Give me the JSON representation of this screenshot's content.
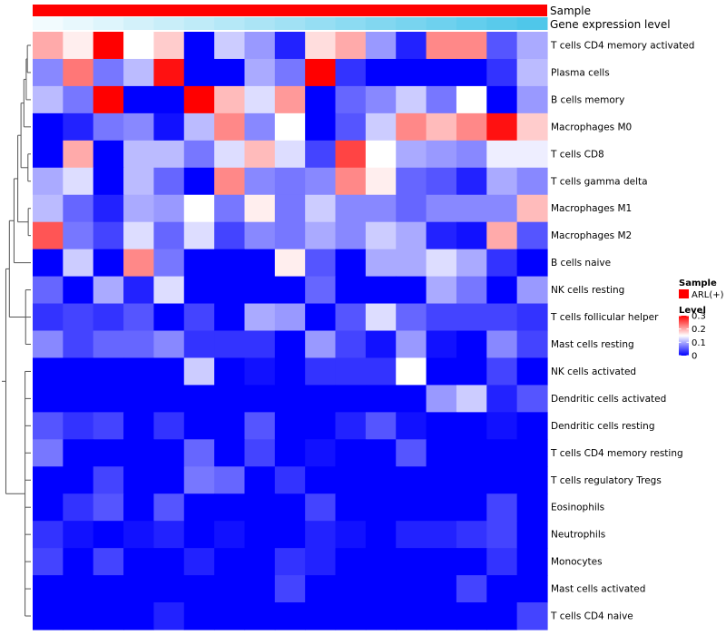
{
  "chart_data": {
    "type": "heatmap",
    "title": "",
    "annotation_tracks": [
      {
        "label": "Sample",
        "kind": "categorical",
        "color": "#ff0000"
      },
      {
        "label": "Gene expression level",
        "kind": "gradient",
        "from": "#f2fbfe",
        "to": "#4fc7ea"
      }
    ],
    "row_labels": [
      "T cells CD4 memory activated",
      "Plasma cells",
      "B cells memory",
      "Macrophages M0",
      "T cells CD8",
      "T cells gamma delta",
      "Macrophages M1",
      "Macrophages M2",
      "B cells naive",
      "NK cells resting",
      "T cells follicular helper",
      "Mast cells resting",
      "NK cells activated",
      "Dendritic cells activated",
      "Dendritic cells resting",
      "T cells CD4 memory resting",
      "T cells regulatory  Tregs",
      "Eosinophils",
      "Neutrophils",
      "Monocytes",
      "Mast cells activated",
      "T cells CD4 naive"
    ],
    "n_columns": 17,
    "values": [
      [
        0.2,
        0.16,
        0.3,
        0.15,
        0.18,
        0.0,
        0.12,
        0.09,
        0.02,
        0.17,
        0.2,
        0.09,
        0.02,
        0.22,
        0.22,
        0.05,
        0.1
      ],
      [
        0.08,
        0.23,
        0.07,
        0.11,
        0.29,
        0.0,
        0.0,
        0.1,
        0.07,
        0.3,
        0.03,
        0.0,
        0.0,
        0.0,
        0.0,
        0.03,
        0.11
      ],
      [
        0.11,
        0.07,
        0.3,
        0.0,
        0.0,
        0.3,
        0.19,
        0.13,
        0.21,
        0.0,
        0.06,
        0.08,
        0.12,
        0.07,
        0.15,
        0.0,
        0.09
      ],
      [
        0.0,
        0.02,
        0.07,
        0.08,
        0.01,
        0.11,
        0.22,
        0.08,
        0.15,
        0.0,
        0.05,
        0.12,
        0.22,
        0.19,
        0.22,
        0.29,
        0.18
      ],
      [
        0.0,
        0.2,
        0.0,
        0.11,
        0.11,
        0.07,
        0.13,
        0.19,
        0.13,
        0.04,
        0.26,
        0.15,
        0.1,
        0.09,
        0.08,
        0.14,
        0.14
      ],
      [
        0.1,
        0.13,
        0.0,
        0.11,
        0.06,
        0.0,
        0.22,
        0.08,
        0.07,
        0.08,
        0.22,
        0.16,
        0.06,
        0.05,
        0.02,
        0.1,
        0.08
      ],
      [
        0.11,
        0.06,
        0.02,
        0.1,
        0.09,
        0.15,
        0.07,
        0.16,
        0.07,
        0.12,
        0.08,
        0.08,
        0.06,
        0.08,
        0.08,
        0.08,
        0.19
      ],
      [
        0.25,
        0.07,
        0.04,
        0.13,
        0.06,
        0.13,
        0.04,
        0.08,
        0.07,
        0.1,
        0.08,
        0.12,
        0.1,
        0.02,
        0.01,
        0.2,
        0.05
      ],
      [
        0.0,
        0.12,
        0.0,
        0.22,
        0.07,
        0.0,
        0.0,
        0.0,
        0.16,
        0.05,
        0.0,
        0.1,
        0.1,
        0.13,
        0.1,
        0.03,
        0.0
      ],
      [
        0.06,
        0.0,
        0.1,
        0.02,
        0.13,
        0.0,
        0.0,
        0.0,
        0.0,
        0.06,
        0.0,
        0.0,
        0.0,
        0.1,
        0.07,
        0.0,
        0.09
      ],
      [
        0.03,
        0.04,
        0.03,
        0.05,
        0.0,
        0.04,
        0.0,
        0.1,
        0.09,
        0.0,
        0.05,
        0.13,
        0.06,
        0.04,
        0.04,
        0.04,
        0.03
      ],
      [
        0.08,
        0.04,
        0.06,
        0.06,
        0.08,
        0.03,
        0.03,
        0.03,
        0.0,
        0.09,
        0.04,
        0.01,
        0.09,
        0.01,
        0.0,
        0.08,
        0.04
      ],
      [
        0.0,
        0.0,
        0.0,
        0.0,
        0.0,
        0.12,
        0.0,
        0.01,
        0.0,
        0.03,
        0.03,
        0.03,
        0.15,
        0.0,
        0.0,
        0.04,
        0.0
      ],
      [
        0.0,
        0.0,
        0.0,
        0.0,
        0.0,
        0.0,
        0.0,
        0.0,
        0.0,
        0.0,
        0.0,
        0.0,
        0.0,
        0.09,
        0.12,
        0.02,
        0.05
      ],
      [
        0.05,
        0.03,
        0.04,
        0.0,
        0.03,
        0.0,
        0.0,
        0.05,
        0.0,
        0.0,
        0.02,
        0.05,
        0.01,
        0.0,
        0.0,
        0.01,
        0.0
      ],
      [
        0.07,
        0.0,
        0.0,
        0.0,
        0.0,
        0.06,
        0.0,
        0.04,
        0.0,
        0.01,
        0.0,
        0.0,
        0.05,
        0.0,
        0.0,
        0.0,
        0.0
      ],
      [
        0.0,
        0.0,
        0.04,
        0.0,
        0.0,
        0.07,
        0.06,
        0.0,
        0.03,
        0.0,
        0.0,
        0.0,
        0.0,
        0.0,
        0.0,
        0.0,
        0.0
      ],
      [
        0.0,
        0.03,
        0.05,
        0.0,
        0.05,
        0.0,
        0.0,
        0.0,
        0.0,
        0.04,
        0.0,
        0.0,
        0.0,
        0.0,
        0.0,
        0.04,
        0.0
      ],
      [
        0.03,
        0.01,
        0.0,
        0.01,
        0.02,
        0.0,
        0.01,
        0.0,
        0.0,
        0.02,
        0.01,
        0.0,
        0.02,
        0.02,
        0.03,
        0.04,
        0.0
      ],
      [
        0.04,
        0.0,
        0.04,
        0.0,
        0.0,
        0.02,
        0.0,
        0.0,
        0.03,
        0.02,
        0.0,
        0.0,
        0.0,
        0.0,
        0.0,
        0.03,
        0.0
      ],
      [
        0.0,
        0.0,
        0.0,
        0.0,
        0.0,
        0.0,
        0.0,
        0.0,
        0.04,
        0.0,
        0.0,
        0.0,
        0.0,
        0.0,
        0.04,
        0.0,
        0.0
      ],
      [
        0.0,
        0.0,
        0.0,
        0.0,
        0.02,
        0.0,
        0.0,
        0.0,
        0.0,
        0.0,
        0.0,
        0.0,
        0.0,
        0.0,
        0.0,
        0.0,
        0.04
      ]
    ],
    "color_scale": {
      "min": 0,
      "mid": 0.15,
      "max": 0.3,
      "low": "#0000ff",
      "mid_color": "#ffffff",
      "high": "#ff0000"
    },
    "legend": {
      "sample_title": "Sample",
      "sample_item": "ARL(+)",
      "level_title": "Level",
      "level_ticks": [
        "0.3",
        "0.2",
        "0.1",
        "0"
      ],
      "position": "right"
    },
    "row_dendrogram": true,
    "grid": false
  }
}
